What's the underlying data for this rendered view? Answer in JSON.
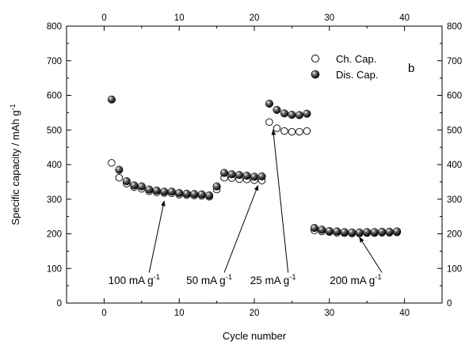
{
  "chart_data": {
    "type": "scatter",
    "title": "",
    "panel_label": "b",
    "xlabel": "Cycle number",
    "ylabel": "Specific capacity / mAh g",
    "ylabel_sup": "-1",
    "xlim": [
      -5,
      45
    ],
    "ylim": [
      0,
      800
    ],
    "xticks": [
      0,
      10,
      20,
      30,
      40
    ],
    "yticks": [
      0,
      100,
      200,
      300,
      400,
      500,
      600,
      700,
      800
    ],
    "legend_position": "top-right",
    "grid": false,
    "series": [
      {
        "name": "Ch. Cap.",
        "marker": "open-circle",
        "points": [
          [
            1,
            405
          ],
          [
            2,
            362
          ],
          [
            3,
            345
          ],
          [
            4,
            335
          ],
          [
            5,
            330
          ],
          [
            6,
            323
          ],
          [
            7,
            320
          ],
          [
            8,
            318
          ],
          [
            9,
            317
          ],
          [
            10,
            313
          ],
          [
            11,
            312
          ],
          [
            12,
            311
          ],
          [
            13,
            310
          ],
          [
            14,
            307
          ],
          [
            15,
            328
          ],
          [
            16,
            362
          ],
          [
            17,
            361
          ],
          [
            18,
            358
          ],
          [
            19,
            357
          ],
          [
            20,
            355
          ],
          [
            21,
            354
          ],
          [
            22,
            523
          ],
          [
            23,
            505
          ],
          [
            24,
            497
          ],
          [
            25,
            495
          ],
          [
            26,
            495
          ],
          [
            27,
            497
          ],
          [
            28,
            210
          ],
          [
            29,
            207
          ],
          [
            30,
            205
          ],
          [
            31,
            203
          ],
          [
            32,
            202
          ],
          [
            33,
            201
          ],
          [
            34,
            201
          ],
          [
            35,
            202
          ],
          [
            36,
            202
          ],
          [
            37,
            203
          ],
          [
            38,
            203
          ],
          [
            39,
            204
          ]
        ]
      },
      {
        "name": "Dis. Cap.",
        "marker": "filled-sphere",
        "points": [
          [
            1,
            588
          ],
          [
            2,
            385
          ],
          [
            3,
            352
          ],
          [
            4,
            340
          ],
          [
            5,
            337
          ],
          [
            6,
            328
          ],
          [
            7,
            325
          ],
          [
            8,
            322
          ],
          [
            9,
            322
          ],
          [
            10,
            318
          ],
          [
            11,
            316
          ],
          [
            12,
            315
          ],
          [
            13,
            314
          ],
          [
            14,
            311
          ],
          [
            15,
            337
          ],
          [
            16,
            376
          ],
          [
            17,
            372
          ],
          [
            18,
            370
          ],
          [
            19,
            368
          ],
          [
            20,
            365
          ],
          [
            21,
            366
          ],
          [
            22,
            576
          ],
          [
            23,
            558
          ],
          [
            24,
            548
          ],
          [
            25,
            544
          ],
          [
            26,
            543
          ],
          [
            27,
            547
          ],
          [
            28,
            217
          ],
          [
            29,
            212
          ],
          [
            30,
            208
          ],
          [
            31,
            207
          ],
          [
            32,
            205
          ],
          [
            33,
            204
          ],
          [
            34,
            204
          ],
          [
            35,
            205
          ],
          [
            36,
            205
          ],
          [
            37,
            206
          ],
          [
            38,
            206
          ],
          [
            39,
            207
          ]
        ]
      }
    ],
    "annotations": [
      {
        "text": "100 mA g",
        "sup": "-1",
        "text_at": [
          4,
          55
        ],
        "arrow_from": [
          6,
          88
        ],
        "arrow_to": [
          8,
          295
        ]
      },
      {
        "text": "50 mA g",
        "sup": "-1",
        "text_at": [
          14,
          55
        ],
        "arrow_from": [
          16,
          88
        ],
        "arrow_to": [
          20.5,
          340
        ]
      },
      {
        "text": "25 mA g",
        "sup": "-1",
        "text_at": [
          22.5,
          55
        ],
        "arrow_from": [
          24.5,
          88
        ],
        "arrow_to": [
          22.5,
          500
        ]
      },
      {
        "text": "200 mA g",
        "sup": "-1",
        "text_at": [
          33.5,
          55
        ],
        "arrow_from": [
          37,
          88
        ],
        "arrow_to": [
          34,
          190
        ]
      }
    ]
  }
}
